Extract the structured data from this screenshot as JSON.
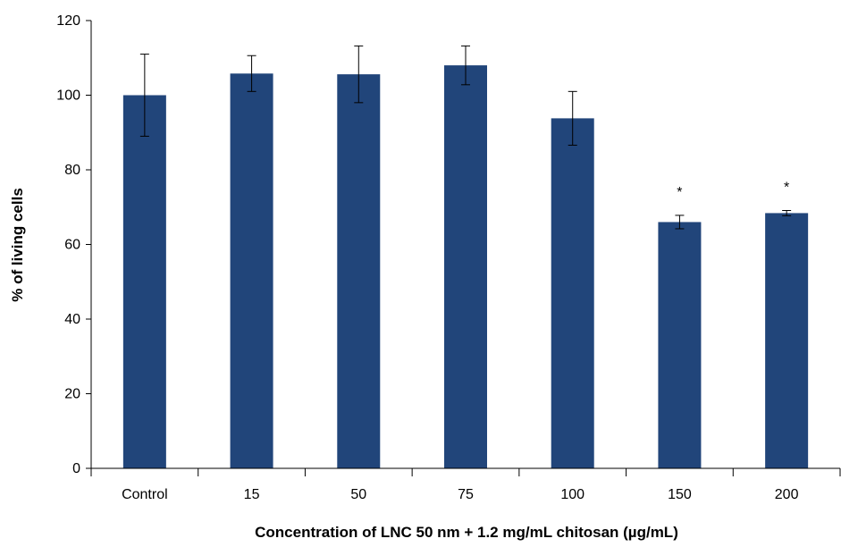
{
  "chart_data": {
    "type": "bar",
    "categories": [
      "Control",
      "15",
      "50",
      "75",
      "100",
      "150",
      "200"
    ],
    "values": [
      100,
      105.8,
      105.6,
      108,
      93.8,
      66,
      68.4
    ],
    "errors": [
      11,
      4.8,
      7.6,
      5.2,
      7.2,
      1.8,
      0.7
    ],
    "annotations": [
      "",
      "",
      "",
      "",
      "",
      "*",
      "*"
    ],
    "xlabel": "Concentration of LNC 50 nm + 1.2 mg/mL chitosan (µg/mL)",
    "ylabel": "% of living cells",
    "ylim": [
      0,
      120
    ],
    "yticks": [
      0,
      20,
      40,
      60,
      80,
      100,
      120
    ],
    "bar_color": "#21457a",
    "grid": false,
    "legend": "none"
  }
}
